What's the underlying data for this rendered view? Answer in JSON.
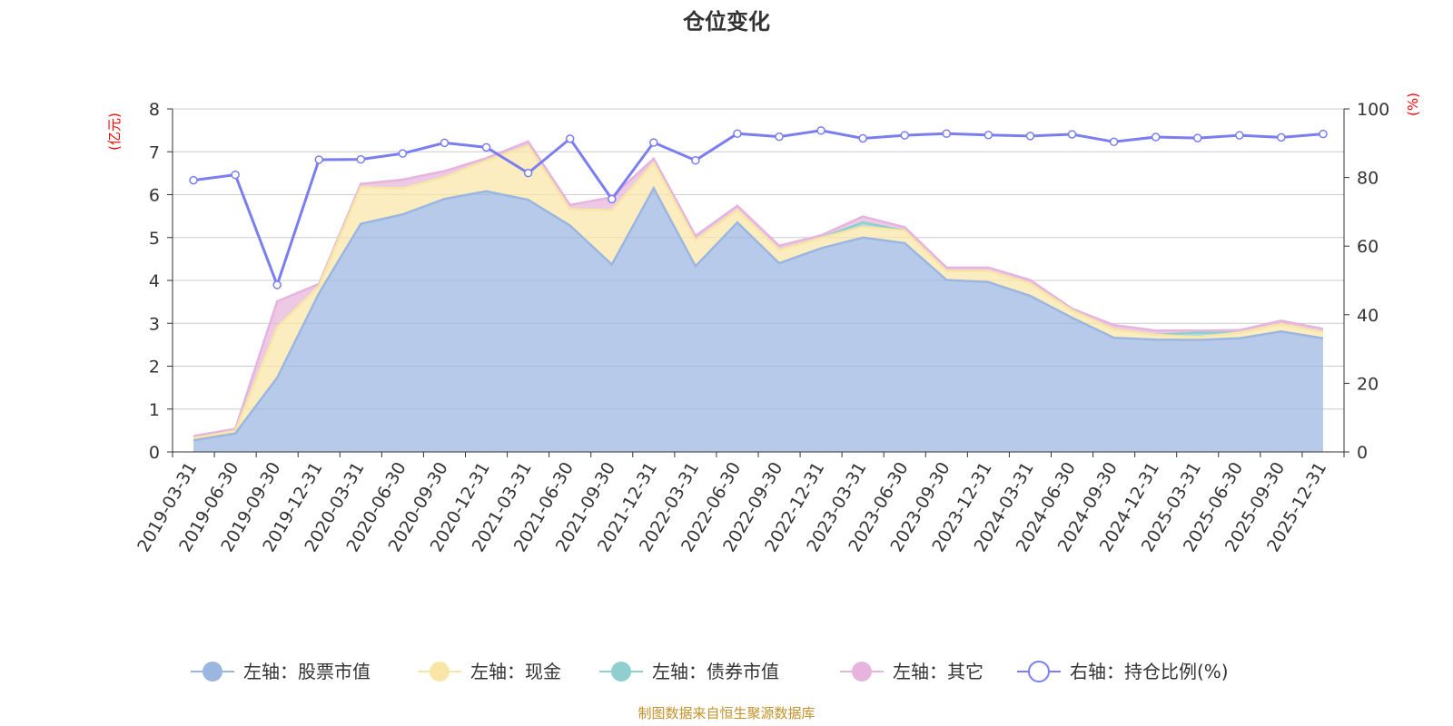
{
  "chart_data": {
    "type": "area",
    "title": "仓位变化",
    "left_axis_name": "(亿元)",
    "right_axis_name": "(%)",
    "y_left_lim": [
      0,
      8
    ],
    "y_left_ticks": [
      "0",
      "1",
      "2",
      "3",
      "4",
      "5",
      "6",
      "7",
      "8"
    ],
    "y_right_lim": [
      0,
      100
    ],
    "y_right_ticks": [
      "0",
      "20",
      "40",
      "60",
      "80",
      "100"
    ],
    "grid": true,
    "legend_position": "bottom",
    "x_tick_labels": [
      "2019-03-31",
      "2019-06-30",
      "2019-09-30",
      "2019-12-31",
      "2020-03-31",
      "2020-06-30",
      "2020-09-30",
      "2020-12-31",
      "2021-03-31",
      "2021-06-30",
      "2021-09-30",
      "2021-12-31",
      "2022-03-31",
      "2022-06-30",
      "2022-09-30",
      "2022-12-31",
      "2023-03-31",
      "2023-06-30",
      "2023-09-30",
      "2023-12-31",
      "2024-03-31",
      "2024-06-30",
      "2024-09-30",
      "2024-12-31",
      "2025-03-31",
      "2025-06-30",
      "2025-09-30",
      "2025-12-31"
    ],
    "series": [
      {
        "name": "左轴：股票市值",
        "axis": "left",
        "kind": "stacked-area",
        "color": "#9bb6e0",
        "values": [
          0.27,
          0.43,
          1.73,
          3.7,
          5.32,
          5.54,
          5.9,
          6.08,
          5.88,
          5.28,
          4.37,
          6.15,
          4.33,
          5.35,
          4.4,
          4.75,
          5.0,
          4.87,
          4.01,
          3.96,
          3.64,
          3.13,
          2.66,
          2.62,
          2.61,
          2.65,
          2.81,
          2.65
        ]
      },
      {
        "name": "左轴：现金",
        "axis": "left",
        "kind": "stacked-area",
        "color": "#f9e6a6",
        "values": [
          0.05,
          0.06,
          1.18,
          0.17,
          0.86,
          0.61,
          0.51,
          0.72,
          1.26,
          0.38,
          1.27,
          0.59,
          0.61,
          0.29,
          0.31,
          0.24,
          0.25,
          0.29,
          0.21,
          0.26,
          0.29,
          0.17,
          0.2,
          0.11,
          0.07,
          0.13,
          0.17,
          0.14
        ]
      },
      {
        "name": "左轴：债券市值",
        "axis": "left",
        "kind": "stacked-area",
        "color": "#8fcfd0",
        "values": [
          0,
          0,
          0,
          0,
          0,
          0,
          0,
          0,
          0,
          0,
          0,
          0,
          0,
          0,
          0,
          0,
          0.1,
          0,
          0,
          0,
          0,
          0,
          0,
          0,
          0.1,
          0,
          0,
          0
        ]
      },
      {
        "name": "左轴：其它",
        "axis": "left",
        "kind": "stacked-area",
        "color": "#e6b4dc",
        "values": [
          0.05,
          0.05,
          0.6,
          0.05,
          0.07,
          0.2,
          0.14,
          0.05,
          0.1,
          0.1,
          0.3,
          0.1,
          0.1,
          0.1,
          0.1,
          0.06,
          0.14,
          0.08,
          0.08,
          0.08,
          0.08,
          0.04,
          0.1,
          0.1,
          0.05,
          0.06,
          0.08,
          0.08
        ]
      },
      {
        "name": "右轴：持仓比例(%)",
        "axis": "right",
        "kind": "line",
        "color": "#7b7ef0",
        "values": [
          79.2,
          80.8,
          48.7,
          85.2,
          85.3,
          87.0,
          90.1,
          88.8,
          81.3,
          91.3,
          73.7,
          90.2,
          85.0,
          92.8,
          91.9,
          93.7,
          91.4,
          92.3,
          92.8,
          92.4,
          92.1,
          92.6,
          90.4,
          91.8,
          91.5,
          92.3,
          91.7,
          92.7
        ]
      }
    ]
  },
  "source_note": "制图数据来自恒生聚源数据库"
}
